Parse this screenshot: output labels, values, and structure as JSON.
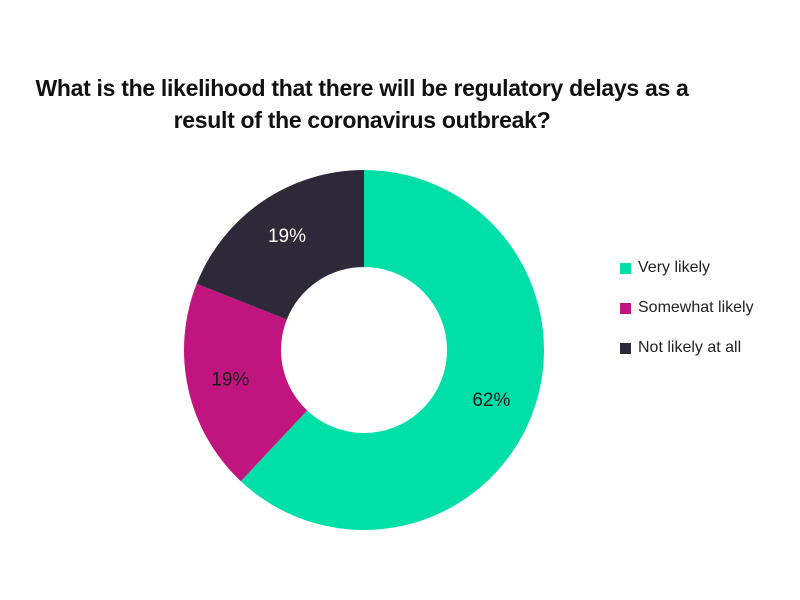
{
  "chart_data": {
    "type": "pie",
    "variant": "donut",
    "title_lines": [
      "What is the likelihood that there will be regulatory delays as a",
      "result of the coronavirus outbreak?"
    ],
    "categories": [
      "Very likely",
      "Somewhat likely",
      "Not likely at all"
    ],
    "values": [
      62,
      19,
      19
    ],
    "labels": [
      "62%",
      "19%",
      "19%"
    ],
    "colors": [
      "#00dfa7",
      "#c0157f",
      "#2e2939"
    ],
    "label_colors": [
      "#1a1a1a",
      "#1a1a1a",
      "#ffffff"
    ],
    "legend_position": "right"
  }
}
